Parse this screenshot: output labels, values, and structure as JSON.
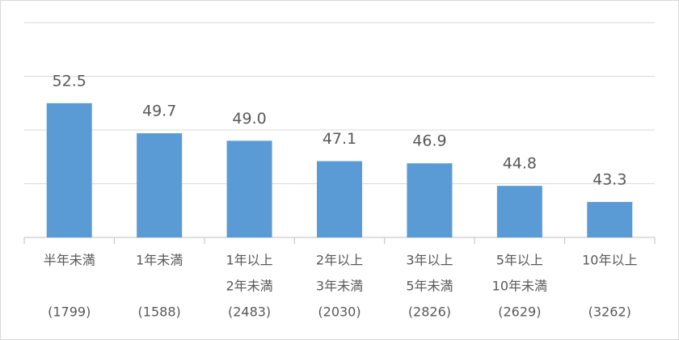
{
  "chart_data": {
    "type": "bar",
    "categories": [
      [
        "半年未満"
      ],
      [
        "1年未満"
      ],
      [
        "1年以上",
        "2年未満"
      ],
      [
        "2年以上",
        "3年未満"
      ],
      [
        "3年以上",
        "5年未満"
      ],
      [
        "5年以上",
        "10年未満"
      ],
      [
        "10年以上"
      ]
    ],
    "sample_sizes": [
      "(1799)",
      "(1588)",
      "(2483)",
      "(2030)",
      "(2826)",
      "(2629)",
      "(3262)"
    ],
    "values": [
      52.5,
      49.7,
      49.0,
      47.1,
      46.9,
      44.8,
      43.3
    ],
    "value_labels": [
      "52.5",
      "49.7",
      "49.0",
      "47.1",
      "46.9",
      "44.8",
      "43.3"
    ],
    "color": "#5b9bd5",
    "ylim": [
      40,
      60
    ],
    "yticks": [
      40,
      45,
      50,
      55,
      60
    ],
    "grid": true
  }
}
